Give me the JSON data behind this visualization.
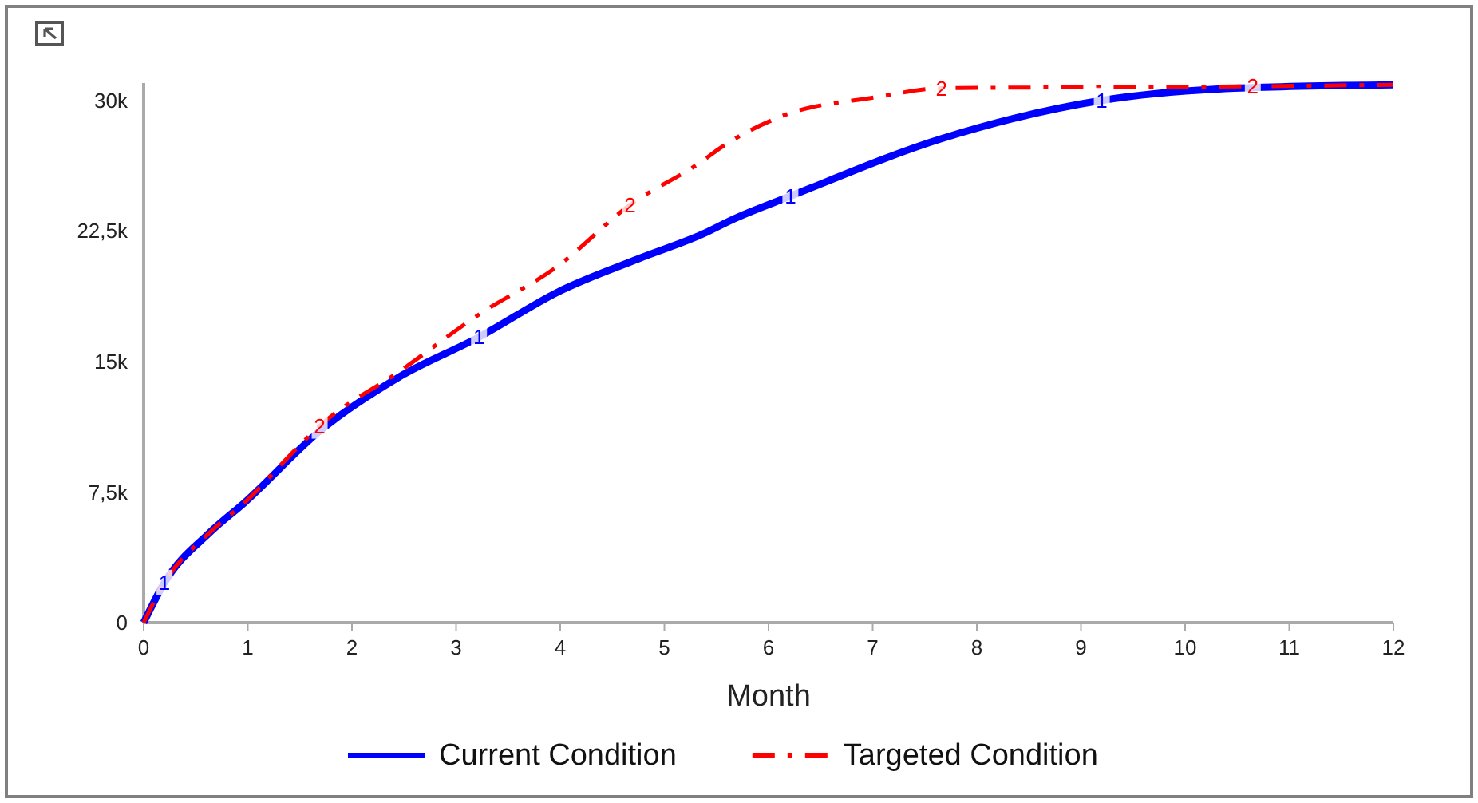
{
  "chart_data": {
    "type": "line",
    "xlabel": "Month",
    "xlim": [
      0,
      12
    ],
    "xticks": [
      0,
      1,
      2,
      3,
      4,
      5,
      6,
      7,
      8,
      9,
      10,
      11,
      12
    ],
    "ylim": [
      0,
      31000
    ],
    "yticks": [
      {
        "value": 0,
        "label": "0"
      },
      {
        "value": 7500,
        "label": "7,5k"
      },
      {
        "value": 15000,
        "label": "15k"
      },
      {
        "value": 22500,
        "label": "22,5k"
      },
      {
        "value": 30000,
        "label": "30k"
      }
    ],
    "grid": false,
    "legend": "bottom",
    "marker": "none",
    "series": [
      {
        "name": "Current Condition",
        "color": "#0000ff",
        "line_style": "solid",
        "x": [
          0,
          0.2,
          0.64,
          0.97,
          1.69,
          2.45,
          3.22,
          3.98,
          4.75,
          5.36,
          5.67,
          6.21,
          7.66,
          9.2,
          10.47,
          12
        ],
        "values": [
          0,
          2300,
          5200,
          6900,
          11000,
          14100,
          16400,
          19000,
          20900,
          22300,
          23200,
          24500,
          27800,
          30000,
          30700,
          30900
        ]
      },
      {
        "name": "Targeted Condition",
        "color": "#ff0000",
        "line_style": "dashed",
        "x": [
          0,
          0.2,
          0.64,
          0.97,
          1.5,
          1.69,
          2.45,
          3.22,
          3.98,
          4.67,
          5.36,
          5.52,
          6.13,
          7.05,
          7.66,
          10.47,
          12
        ],
        "values": [
          0,
          2300,
          5200,
          6900,
          10200,
          11300,
          14400,
          17700,
          20500,
          24000,
          26500,
          27200,
          29100,
          30200,
          30700,
          30800,
          30900
        ]
      }
    ],
    "annotations": [
      {
        "text": "1",
        "x": 0.2,
        "y": 2300
      },
      {
        "text": "1",
        "x": 3.22,
        "y": 16400
      },
      {
        "text": "1",
        "x": 6.21,
        "y": 24500
      },
      {
        "text": "1",
        "x": 9.2,
        "y": 30000
      },
      {
        "text": "2",
        "x": 1.69,
        "y": 11300
      },
      {
        "text": "2",
        "x": 4.67,
        "y": 24000
      },
      {
        "text": "2",
        "x": 7.66,
        "y": 30700
      },
      {
        "text": "2",
        "x": 10.65,
        "y": 30800
      }
    ]
  }
}
